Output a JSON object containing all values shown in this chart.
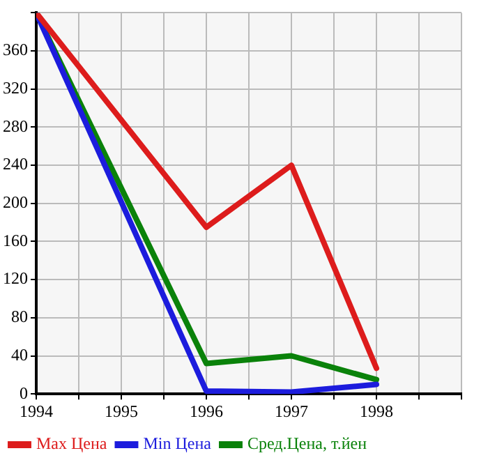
{
  "chart_data": {
    "type": "line",
    "x": [
      1994,
      1996,
      1997,
      1998
    ],
    "series": [
      {
        "name": "Max Цена",
        "color": "#dd1c1c",
        "values": [
          400,
          175,
          240,
          27
        ]
      },
      {
        "name": "Min Цена",
        "color": "#1c1cdd",
        "values": [
          400,
          3,
          2,
          10
        ]
      },
      {
        "name": "Сред.Цена, т.йен",
        "color": "#0a820a",
        "values": [
          400,
          32,
          40,
          15
        ]
      }
    ],
    "xlim": [
      1994,
      1999
    ],
    "xticks": [
      1994,
      {
        "value": 1994.5,
        "label": null
      },
      1995,
      {
        "value": 1995.5,
        "label": null
      },
      1996,
      {
        "value": 1996.5,
        "label": null
      },
      1997,
      {
        "value": 1997.5,
        "label": null
      },
      1998,
      {
        "value": 1998.5,
        "label": null
      },
      {
        "value": 1999,
        "label": null
      }
    ],
    "ylim": [
      0,
      400
    ],
    "yticks": [
      0,
      40,
      80,
      120,
      160,
      200,
      240,
      280,
      320,
      360,
      {
        "value": 400,
        "label": null
      }
    ],
    "grid": true,
    "legend": "bottom",
    "marker": "none",
    "line_style": "solid"
  }
}
